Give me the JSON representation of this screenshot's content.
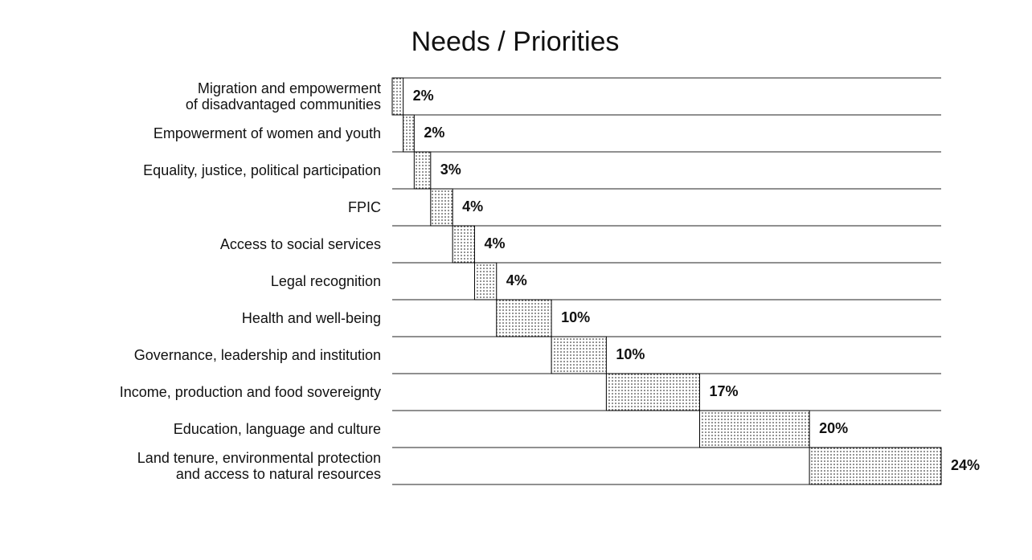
{
  "chart_data": {
    "type": "waterfall",
    "title": "Needs / Priorities",
    "categories": [
      "Migration and empowerment\nof disadvantaged communities",
      "Empowerment of women and youth",
      "Equality, justice, political participation",
      "FPIC",
      "Access to social services",
      "Legal recognition",
      "Health and well-being",
      "Governance, leadership and institution",
      "Income, production and food sovereignty",
      "Education, language and culture",
      "Land tenure, environmental protection\nand access to natural resources"
    ],
    "values": [
      2,
      2,
      3,
      4,
      4,
      4,
      10,
      10,
      17,
      20,
      24
    ],
    "value_labels": [
      "2%",
      "2%",
      "3%",
      "4%",
      "4%",
      "4%",
      "10%",
      "10%",
      "17%",
      "20%",
      "24%"
    ],
    "color": "#000000"
  }
}
